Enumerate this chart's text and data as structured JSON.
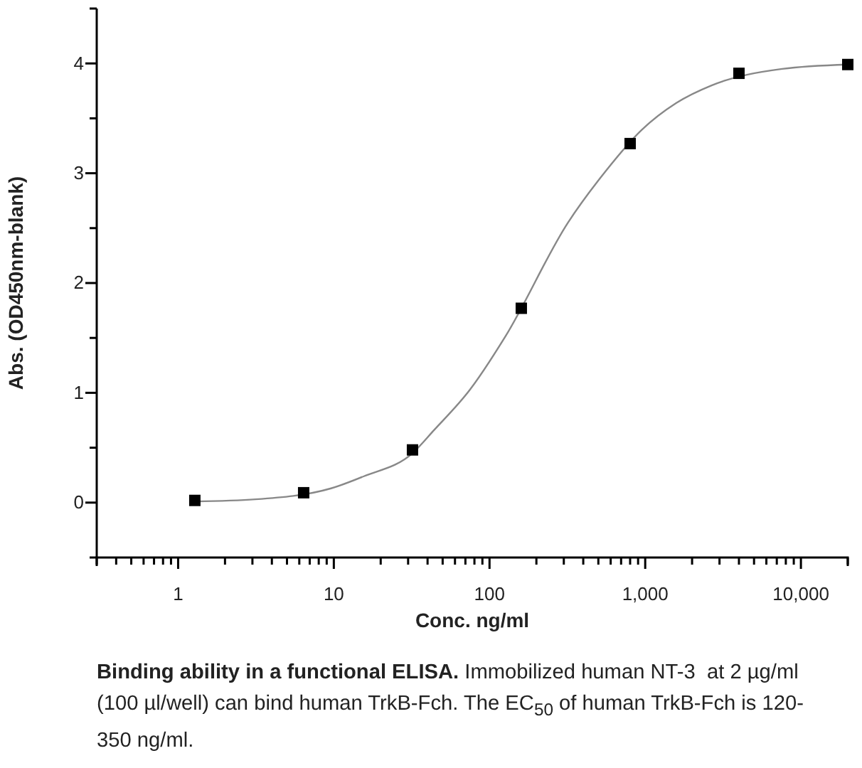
{
  "chart_data": {
    "type": "scatter",
    "xlabel": "Conc. ng/ml",
    "ylabel": "Abs. (OD450nm-blank)",
    "log": "x",
    "grid": false,
    "xlim": [
      0.3,
      20000
    ],
    "xticks": [
      {
        "value": 0.3,
        "label": null
      },
      {
        "value": 0.4,
        "label": null
      },
      {
        "value": 0.5,
        "label": null
      },
      {
        "value": 0.6,
        "label": null
      },
      {
        "value": 0.7,
        "label": null
      },
      {
        "value": 0.8,
        "label": null
      },
      {
        "value": 0.9,
        "label": null
      },
      1,
      {
        "value": 2,
        "label": null
      },
      {
        "value": 3,
        "label": null
      },
      {
        "value": 4,
        "label": null
      },
      {
        "value": 5,
        "label": null
      },
      {
        "value": 6,
        "label": null
      },
      {
        "value": 7,
        "label": null
      },
      {
        "value": 8,
        "label": null
      },
      {
        "value": 9,
        "label": null
      },
      10,
      {
        "value": 20,
        "label": null
      },
      {
        "value": 30,
        "label": null
      },
      {
        "value": 40,
        "label": null
      },
      {
        "value": 50,
        "label": null
      },
      {
        "value": 60,
        "label": null
      },
      {
        "value": 70,
        "label": null
      },
      {
        "value": 80,
        "label": null
      },
      {
        "value": 90,
        "label": null
      },
      100,
      {
        "value": 200,
        "label": null
      },
      {
        "value": 300,
        "label": null
      },
      {
        "value": 400,
        "label": null
      },
      {
        "value": 500,
        "label": null
      },
      {
        "value": 600,
        "label": null
      },
      {
        "value": 700,
        "label": null
      },
      {
        "value": 800,
        "label": null
      },
      {
        "value": 900,
        "label": null
      },
      {
        "value": 1000,
        "label": "1,000"
      },
      {
        "value": 2000,
        "label": null
      },
      {
        "value": 3000,
        "label": null
      },
      {
        "value": 4000,
        "label": null
      },
      {
        "value": 5000,
        "label": null
      },
      {
        "value": 6000,
        "label": null
      },
      {
        "value": 7000,
        "label": null
      },
      {
        "value": 8000,
        "label": null
      },
      {
        "value": 9000,
        "label": null
      },
      {
        "value": 10000,
        "label": "10,000"
      },
      {
        "value": 20000,
        "label": null
      }
    ],
    "ylim": [
      -0.5,
      4.5
    ],
    "yticks": [
      {
        "value": -0.5,
        "label": null
      },
      0,
      {
        "value": 0.5,
        "label": null
      },
      1,
      {
        "value": 1.5,
        "label": null
      },
      2,
      {
        "value": 2.5,
        "label": null
      },
      3,
      {
        "value": 3.5,
        "label": null
      },
      4,
      {
        "value": 4.5,
        "label": null
      }
    ],
    "series": [
      {
        "type": "line",
        "color": "#888888",
        "line_style": "solid",
        "marker": "none",
        "x": [
          1.28,
          3.14,
          9.6,
          15.6,
          32,
          44,
          75,
          126,
          319,
          558,
          942,
          1585,
          2670,
          7580,
          20000
        ],
        "values": [
          0.01,
          0.03,
          0.13,
          0.24,
          0.45,
          0.66,
          1.03,
          1.51,
          2.55,
          3.02,
          3.39,
          3.64,
          3.8,
          3.95,
          3.99
        ]
      },
      {
        "color": "#000000",
        "marker": "square",
        "x": [
          1.28,
          6.4,
          32,
          160,
          800,
          4000,
          20000
        ],
        "values": [
          0.02,
          0.09,
          0.48,
          1.77,
          3.27,
          3.91,
          3.99
        ]
      }
    ],
    "annotations": [
      "Binding ability in a functional ELISA.",
      "Immobilized human NT-3  at 2 µg/ml (100 µl/well) can bind human TrkB-Fch. The EC$_{50}$ of human TrkB-Fch is 120-350 ng/ml."
    ]
  }
}
